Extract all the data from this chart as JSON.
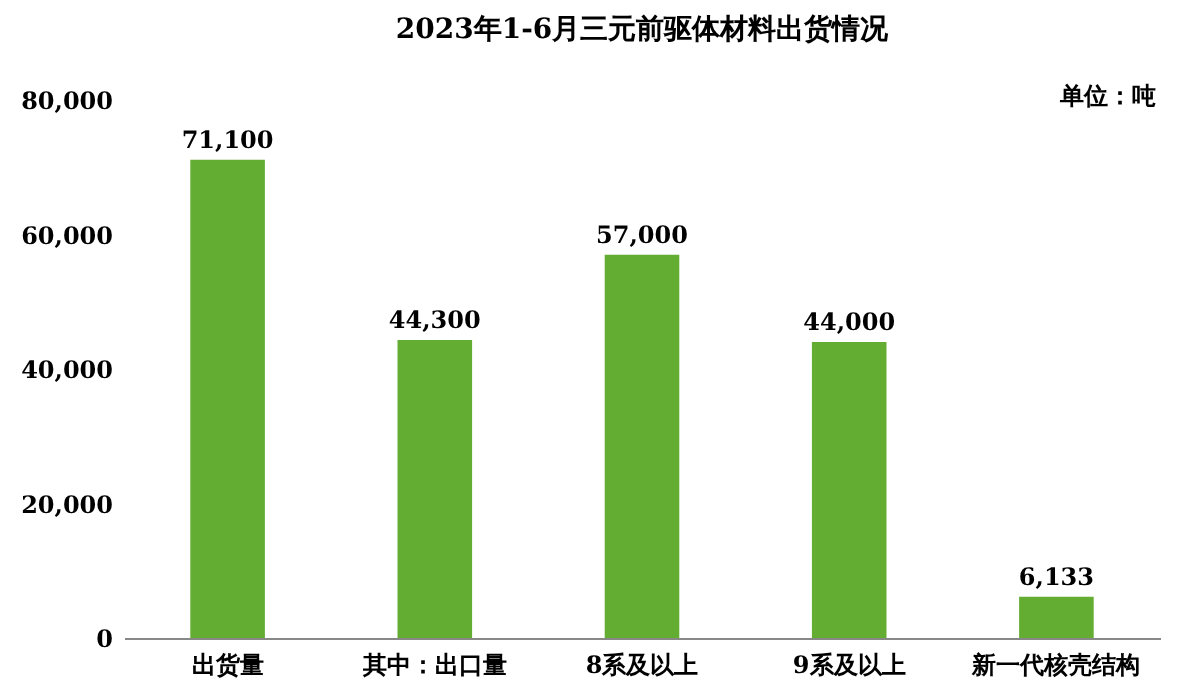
{
  "chart_data": {
    "type": "bar",
    "title": "2023年1-6月三元前驱体材料出货情况",
    "categories": [
      "出货量",
      "其中：出口量",
      "8系及以上",
      "9系及以上",
      "新一代核壳结构"
    ],
    "values": [
      71100,
      44300,
      57000,
      44000,
      6133
    ],
    "color": "#63ad32",
    "value_labels": [
      "71,100",
      "44,300",
      "57,000",
      "44,000",
      "6,133"
    ],
    "ylim": [
      0,
      80000
    ],
    "yticks": [
      0,
      {
        "value": 20000,
        "label": "20,000"
      },
      {
        "value": 40000,
        "label": "40,000"
      },
      {
        "value": 60000,
        "label": "60,000"
      },
      {
        "value": 80000,
        "label": "80,000"
      }
    ],
    "grid": false,
    "annotations": [
      "单位：吨"
    ]
  }
}
